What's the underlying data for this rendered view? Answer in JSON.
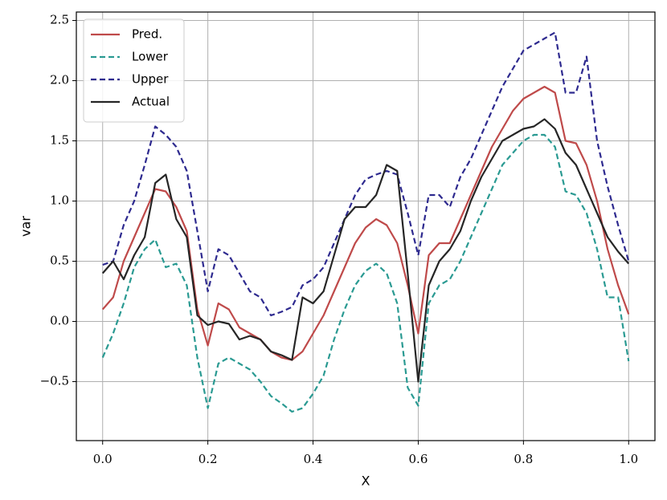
{
  "chart_data": {
    "type": "line",
    "xlabel": "X",
    "ylabel": "var",
    "x": [
      0.0,
      0.02,
      0.04,
      0.06,
      0.08,
      0.1,
      0.12,
      0.14,
      0.16,
      0.18,
      0.2,
      0.22,
      0.24,
      0.26,
      0.28,
      0.3,
      0.32,
      0.34,
      0.36,
      0.38,
      0.4,
      0.42,
      0.44,
      0.46,
      0.48,
      0.5,
      0.52,
      0.54,
      0.56,
      0.58,
      0.6,
      0.62,
      0.64,
      0.66,
      0.68,
      0.7,
      0.72,
      0.74,
      0.76,
      0.78,
      0.8,
      0.82,
      0.84,
      0.86,
      0.88,
      0.9,
      0.92,
      0.94,
      0.96,
      0.98,
      1.0
    ],
    "series": [
      {
        "name": "Pred.",
        "color": "#bf4a4a",
        "linestyle": "solid",
        "values": [
          0.1,
          0.2,
          0.5,
          0.7,
          0.9,
          1.1,
          1.08,
          0.95,
          0.75,
          0.1,
          -0.2,
          0.15,
          0.1,
          -0.05,
          -0.1,
          -0.15,
          -0.25,
          -0.3,
          -0.32,
          -0.25,
          -0.1,
          0.05,
          0.25,
          0.45,
          0.65,
          0.78,
          0.85,
          0.8,
          0.65,
          0.3,
          -0.1,
          0.55,
          0.65,
          0.65,
          0.85,
          1.05,
          1.25,
          1.45,
          1.6,
          1.75,
          1.85,
          1.9,
          1.95,
          1.9,
          1.5,
          1.48,
          1.3,
          1.0,
          0.6,
          0.3,
          0.06
        ]
      },
      {
        "name": "Lower",
        "color": "#2a9a92",
        "linestyle": "dashed",
        "values": [
          -0.3,
          -0.1,
          0.15,
          0.45,
          0.6,
          0.68,
          0.45,
          0.48,
          0.3,
          -0.3,
          -0.72,
          -0.35,
          -0.3,
          -0.35,
          -0.4,
          -0.5,
          -0.62,
          -0.68,
          -0.75,
          -0.72,
          -0.6,
          -0.45,
          -0.15,
          0.1,
          0.3,
          0.42,
          0.48,
          0.4,
          0.15,
          -0.55,
          -0.7,
          0.15,
          0.3,
          0.35,
          0.5,
          0.7,
          0.9,
          1.1,
          1.3,
          1.4,
          1.5,
          1.55,
          1.55,
          1.45,
          1.08,
          1.05,
          0.9,
          0.6,
          0.2,
          0.2,
          -0.33
        ]
      },
      {
        "name": "Upper",
        "color": "#2e2a8f",
        "linestyle": "dashed",
        "values": [
          0.47,
          0.5,
          0.8,
          1.0,
          1.3,
          1.62,
          1.55,
          1.45,
          1.25,
          0.75,
          0.25,
          0.6,
          0.55,
          0.4,
          0.25,
          0.2,
          0.05,
          0.08,
          0.12,
          0.3,
          0.35,
          0.45,
          0.65,
          0.85,
          1.05,
          1.18,
          1.22,
          1.25,
          1.22,
          0.9,
          0.55,
          1.05,
          1.05,
          0.95,
          1.2,
          1.35,
          1.55,
          1.75,
          1.95,
          2.1,
          2.25,
          2.3,
          2.35,
          2.4,
          1.9,
          1.9,
          2.2,
          1.5,
          1.12,
          0.8,
          0.5
        ]
      },
      {
        "name": "Actual",
        "color": "#262626",
        "linestyle": "solid",
        "values": [
          0.4,
          0.5,
          0.35,
          0.55,
          0.7,
          1.15,
          1.22,
          0.85,
          0.7,
          0.05,
          -0.03,
          0.0,
          -0.02,
          -0.15,
          -0.12,
          -0.15,
          -0.25,
          -0.28,
          -0.32,
          0.2,
          0.15,
          0.25,
          0.55,
          0.85,
          0.95,
          0.95,
          1.05,
          1.3,
          1.25,
          0.4,
          -0.5,
          0.3,
          0.5,
          0.6,
          0.75,
          1.0,
          1.2,
          1.35,
          1.5,
          1.55,
          1.6,
          1.62,
          1.68,
          1.6,
          1.4,
          1.3,
          1.1,
          0.9,
          0.7,
          0.58,
          0.48
        ]
      }
    ],
    "xlim": [
      -0.05,
      1.05
    ],
    "xticks": [
      {
        "value": 0.0,
        "label": "0.0"
      },
      0.2,
      0.4,
      0.6,
      0.8,
      {
        "value": 1.0,
        "label": "1.0"
      }
    ],
    "ylim": [
      -0.99,
      2.57
    ],
    "yticks": [
      {
        "value": -0.5,
        "label": "−0.5"
      },
      {
        "value": 0.0,
        "label": "0.0"
      },
      0.5,
      {
        "value": 1.0,
        "label": "1.0"
      },
      1.5,
      {
        "value": 2.0,
        "label": "2.0"
      },
      2.5
    ],
    "grid": true,
    "legend": "upper left"
  }
}
